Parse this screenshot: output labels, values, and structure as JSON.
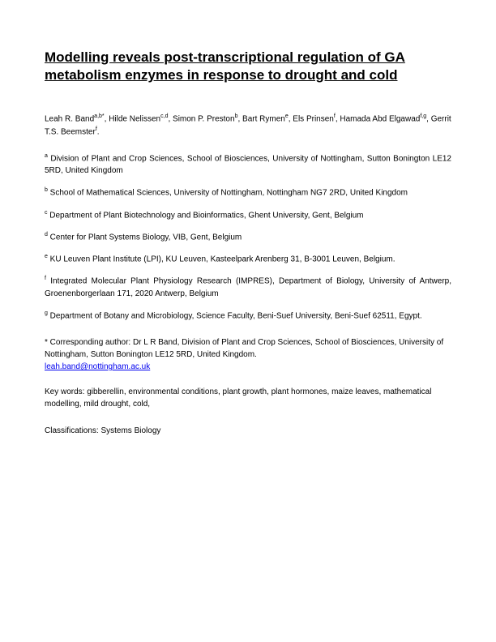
{
  "title": "Modelling reveals post-transcriptional regulation of GA metabolism enzymes in response to drought and cold",
  "authors_line1": "Leah R. Band",
  "authors_sup1": "a,b*",
  "authors_line2": ", Hilde Nelissen",
  "authors_sup2": "c,d",
  "authors_line3": ", Simon P. Preston",
  "authors_sup3": "b",
  "authors_line4": ", Bart Rymen",
  "authors_sup4": "e",
  "authors_line5": ", Els Prinsen",
  "authors_sup5": "f",
  "authors_line6": ", Hamada Abd Elgawad",
  "authors_sup6": "f,g",
  "authors_line7": ", Gerrit T.S. Beemster",
  "authors_sup7": "f",
  "authors_line8": ".",
  "aff_a_sup": "a",
  "aff_a": " Division of Plant and Crop Sciences, School of Biosciences, University of Nottingham, Sutton Bonington LE12 5RD, United Kingdom",
  "aff_b_sup": "b",
  "aff_b": " School of Mathematical Sciences, University of Nottingham, Nottingham NG7 2RD, United Kingdom",
  "aff_c_sup": "c",
  "aff_c": " Department of Plant Biotechnology and Bioinformatics, Ghent University, Gent, Belgium",
  "aff_d_sup": "d",
  "aff_d": " Center for Plant Systems Biology, VIB, Gent, Belgium",
  "aff_e_sup": "e",
  "aff_e": " KU Leuven Plant Institute (LPI), KU Leuven, Kasteelpark Arenberg 31, B-3001 Leuven, Belgium.",
  "aff_f_sup": "f",
  "aff_f": " Integrated Molecular Plant Physiology Research (IMPRES), Department of Biology, University of Antwerp, Groenenborgerlaan 171, 2020 Antwerp, Belgium",
  "aff_g_sup": "g",
  "aff_g": " Department of Botany and Microbiology, Science Faculty, Beni-Suef University, Beni-Suef 62511, Egypt.",
  "corresponding": "* Corresponding author: Dr L R Band, Division of Plant and Crop Sciences, School of Biosciences, University of Nottingham, Sutton Bonington LE12 5RD, United Kingdom.",
  "email": "leah.band@nottingham.ac.uk",
  "keywords": "Key words: gibberellin, environmental conditions, plant growth, plant hormones, maize leaves, mathematical modelling, mild drought, cold,",
  "classifications": "Classifications: Systems Biology"
}
